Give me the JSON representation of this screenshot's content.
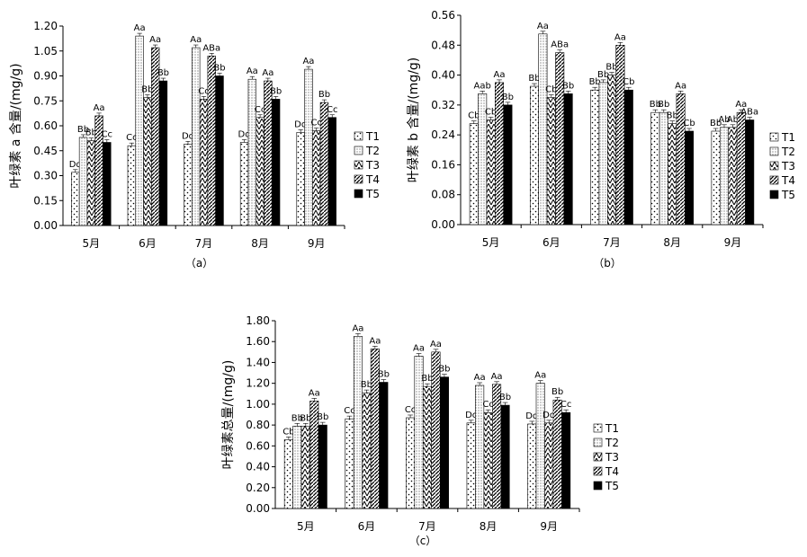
{
  "figure": {
    "title": "",
    "panel_count": 3
  },
  "series_styles": [
    {
      "name": "T1",
      "pattern": "sparse-dots"
    },
    {
      "name": "T2",
      "pattern": "dense-dots"
    },
    {
      "name": "T3",
      "pattern": "zigzag"
    },
    {
      "name": "T4",
      "pattern": "diagonal-hatch"
    },
    {
      "name": "T5",
      "pattern": "solid-black"
    }
  ],
  "chart_data": [
    {
      "type": "bar",
      "panel_label": "（a）",
      "ylabel": "叶绿素 a 含量/(mg/g)",
      "categories": [
        "5月",
        "6月",
        "7月",
        "8月",
        "9月"
      ],
      "ylim": [
        0,
        1.2
      ],
      "yticks": [
        "0.00",
        "0.15",
        "0.30",
        "0.45",
        "0.60",
        "0.75",
        "0.90",
        "1.05",
        "1.20"
      ],
      "grid": false,
      "legend_position": "right",
      "series": [
        {
          "name": "T1",
          "values": [
            0.32,
            0.48,
            0.49,
            0.5,
            0.56
          ],
          "labels": [
            "Dd",
            "Cc",
            "Dd",
            "Dd",
            "Dd"
          ]
        },
        {
          "name": "T2",
          "values": [
            0.53,
            1.14,
            1.07,
            0.88,
            0.94
          ],
          "labels": [
            "Bb",
            "Aa",
            "Aa",
            "Aa",
            "Aa"
          ]
        },
        {
          "name": "T3",
          "values": [
            0.51,
            0.77,
            0.76,
            0.65,
            0.57
          ],
          "labels": [
            "Bb",
            "Bb",
            "Cc",
            "Cc",
            "Cc"
          ]
        },
        {
          "name": "T4",
          "values": [
            0.66,
            1.07,
            1.02,
            0.87,
            0.74
          ],
          "labels": [
            "Aa",
            "Aa",
            "ABa",
            "Aa",
            "Bb"
          ]
        },
        {
          "name": "T5",
          "values": [
            0.5,
            0.87,
            0.9,
            0.76,
            0.65
          ],
          "labels": [
            "Cc",
            "Bb",
            "Bb",
            "Bb",
            "Cc"
          ]
        }
      ]
    },
    {
      "type": "bar",
      "panel_label": "（b）",
      "ylabel": "叶绿素 b 含量/(mg/g)",
      "categories": [
        "5月",
        "6月",
        "7月",
        "8月",
        "9月"
      ],
      "ylim": [
        0,
        0.56
      ],
      "yticks": [
        "0.00",
        "0.08",
        "0.16",
        "0.24",
        "0.32",
        "0.40",
        "0.48",
        "0.56"
      ],
      "grid": false,
      "legend_position": "right",
      "series": [
        {
          "name": "T1",
          "values": [
            0.27,
            0.37,
            0.36,
            0.3,
            0.25
          ],
          "labels": [
            "Cb",
            "Bb",
            "Bb",
            "Bb",
            "Bb"
          ]
        },
        {
          "name": "T2",
          "values": [
            0.35,
            0.51,
            0.38,
            0.3,
            0.26
          ],
          "labels": [
            "Aab",
            "Aa",
            "Bb",
            "Bb",
            "Ab"
          ]
        },
        {
          "name": "T3",
          "values": [
            0.28,
            0.34,
            0.4,
            0.27,
            0.26
          ],
          "labels": [
            "Cb",
            "Cb",
            "Bb",
            "Bb",
            "Ab"
          ]
        },
        {
          "name": "T4",
          "values": [
            0.38,
            0.46,
            0.48,
            0.35,
            0.3
          ],
          "labels": [
            "Aa",
            "ABa",
            "Aa",
            "Aa",
            "Aa"
          ]
        },
        {
          "name": "T5",
          "values": [
            0.32,
            0.35,
            0.36,
            0.25,
            0.28
          ],
          "labels": [
            "Bb",
            "Bb",
            "Cb",
            "Cb",
            "ABa"
          ]
        }
      ]
    },
    {
      "type": "bar",
      "panel_label": "（c）",
      "ylabel": "叶绿素总量/(mg/g)",
      "categories": [
        "5月",
        "6月",
        "7月",
        "8月",
        "9月"
      ],
      "ylim": [
        0,
        1.8
      ],
      "yticks": [
        "0.00",
        "0.20",
        "0.40",
        "0.60",
        "0.80",
        "1.00",
        "1.20",
        "1.40",
        "1.60",
        "1.80"
      ],
      "grid": false,
      "legend_position": "right",
      "series": [
        {
          "name": "T1",
          "values": [
            0.66,
            0.86,
            0.87,
            0.82,
            0.81
          ],
          "labels": [
            "Cb",
            "Cc",
            "Cc",
            "Dc",
            "Dd"
          ]
        },
        {
          "name": "T2",
          "values": [
            0.79,
            1.65,
            1.46,
            1.18,
            1.2
          ],
          "labels": [
            "Bb",
            "Aa",
            "Aa",
            "Aa",
            "Aa"
          ]
        },
        {
          "name": "T3",
          "values": [
            0.79,
            1.11,
            1.17,
            0.92,
            0.82
          ],
          "labels": [
            "Bb",
            "Bb",
            "Bb",
            "Cc",
            "Dd"
          ]
        },
        {
          "name": "T4",
          "values": [
            1.03,
            1.53,
            1.5,
            1.19,
            1.04
          ],
          "labels": [
            "Aa",
            "Aa",
            "Aa",
            "Aa",
            "Bb"
          ]
        },
        {
          "name": "T5",
          "values": [
            0.8,
            1.21,
            1.26,
            0.99,
            0.92
          ],
          "labels": [
            "Bb",
            "Bb",
            "Bb",
            "Bb",
            "Cc"
          ]
        }
      ]
    }
  ]
}
